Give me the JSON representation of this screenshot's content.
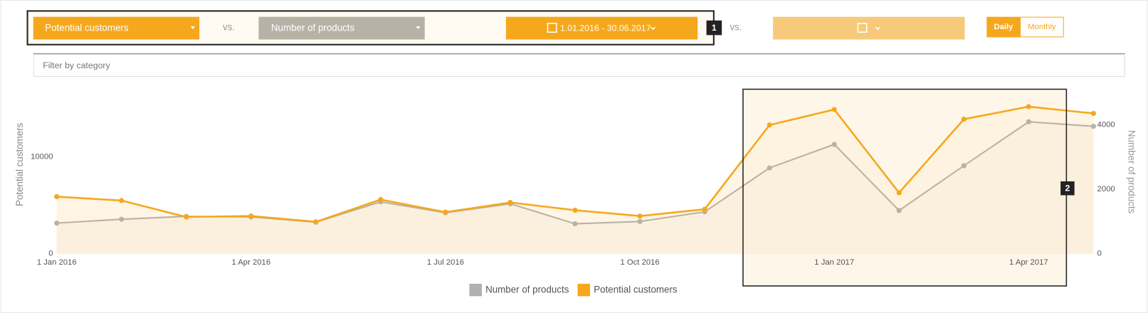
{
  "controls": {
    "metric_1": "Potential customers",
    "vs_1": "vs.",
    "metric_2": "Number of products",
    "date_range": "1.01.2016 - 30.06.2017",
    "badge_1": "1",
    "vs_2": "vs.",
    "daily": "Daily",
    "monthly": "Monthly",
    "filter_placeholder": "Filter by category",
    "badge_2": "2"
  },
  "chart_data": {
    "type": "line",
    "categories": [
      "1 Jan 2016",
      null,
      null,
      "1 Apr 2016",
      null,
      null,
      "1 Jul 2016",
      null,
      null,
      "1 Oct 2016",
      null,
      null,
      "1 Jan 2017",
      null,
      null,
      "1 Apr 2017",
      null
    ],
    "series": [
      {
        "name": "Number of products",
        "color": "#b9b2a4",
        "axis": "y2",
        "values": [
          950,
          1070,
          1160,
          1140,
          980,
          1610,
          1270,
          1550,
          930,
          1000,
          1300,
          2660,
          3390,
          1340,
          2730,
          4090,
          3950
        ]
      },
      {
        "name": "Potential customers",
        "color": "#f5a81c",
        "values": [
          5900,
          5500,
          3800,
          3900,
          3300,
          5600,
          4300,
          5300,
          4500,
          3900,
          4600,
          13300,
          14900,
          6300,
          13900,
          15200,
          14500
        ]
      }
    ],
    "ylabel": "Potential customers",
    "y2label": "Number of products",
    "ylim": [
      0,
      17000
    ],
    "yticks": [
      0,
      10000
    ],
    "y2lim": [
      0,
      5100
    ],
    "y2ticks": [
      0,
      2000,
      4000
    ],
    "legend": "bottom",
    "grid": false
  }
}
